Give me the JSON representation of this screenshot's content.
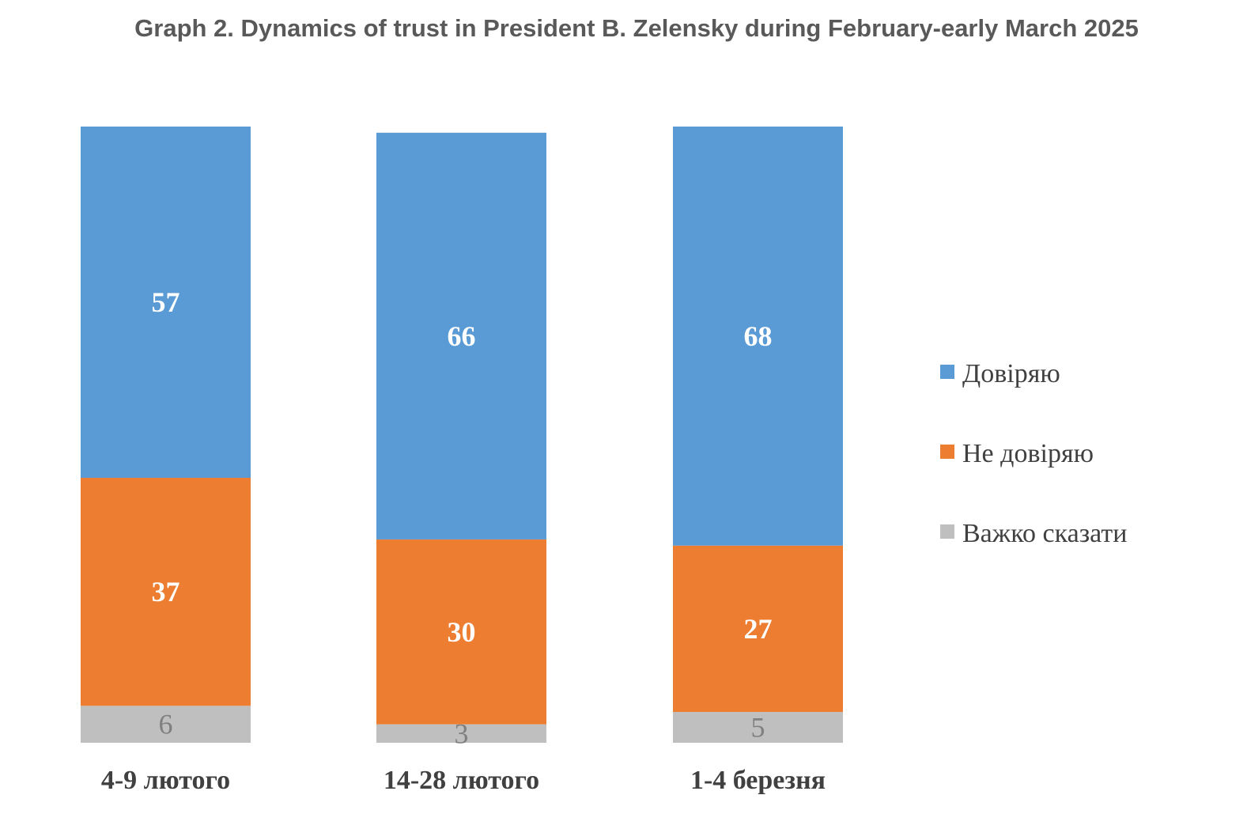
{
  "title": "Graph 2. Dynamics of trust in President B. Zelensky during February-early March 2025",
  "chart_data": {
    "type": "bar",
    "stacked": true,
    "title": "Graph 2. Dynamics of trust in President B. Zelensky during February-early March 2025",
    "categories": [
      "4-9 лютого",
      "14-28 лютого",
      "1-4 березня"
    ],
    "series": [
      {
        "name": "Довіряю",
        "values": [
          57,
          66,
          68
        ],
        "color": "#5b9bd5"
      },
      {
        "name": "Не довіряю",
        "values": [
          37,
          30,
          27
        ],
        "color": "#ed7d31"
      },
      {
        "name": "Важко сказати",
        "values": [
          6,
          3,
          5
        ],
        "color": "#bfbfbf"
      }
    ],
    "ylim": [
      0,
      100
    ],
    "grid": false,
    "legend_position": "right",
    "xlabel": "",
    "ylabel": ""
  }
}
